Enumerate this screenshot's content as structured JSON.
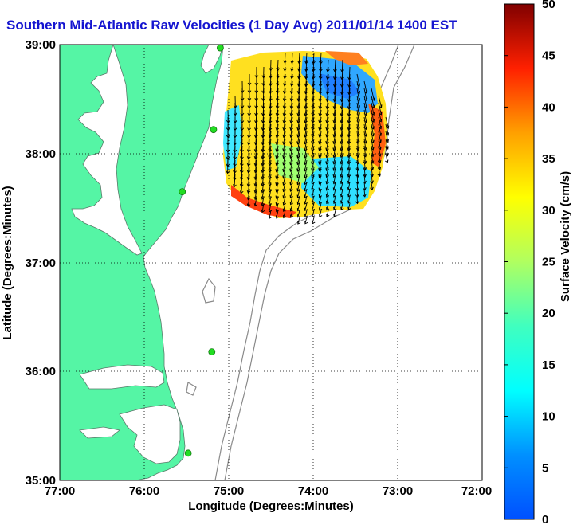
{
  "title": "Southern Mid-Atlantic Raw Velocities (1 Day Avg) 2011/01/14 1400 EST",
  "map": {
    "xlabel": "Longitude (Degrees:Minutes)",
    "ylabel": "Latitude (Degrees:Minutes)",
    "x_ticks": [
      "77:00",
      "76:00",
      "75:00",
      "74:00",
      "73:00",
      "72:00"
    ],
    "y_ticks": [
      "39:00",
      "38:00",
      "37:00",
      "36:00",
      "35:00"
    ],
    "lon_range": [
      -77,
      -72
    ],
    "lat_range": [
      35,
      39
    ],
    "land_color": "#55f5a5",
    "water_color": "#ffffff",
    "grid": true
  },
  "colorbar": {
    "label": "Surface Velocity (cm/s)",
    "ticks": [
      "0",
      "5",
      "10",
      "15",
      "20",
      "25",
      "30",
      "35",
      "40",
      "45",
      "50"
    ],
    "range": [
      0,
      50
    ],
    "colormap": "jet"
  },
  "stations": [
    {
      "lon": -75.1,
      "lat": 38.97
    },
    {
      "lon": -75.18,
      "lat": 38.22
    },
    {
      "lon": -75.55,
      "lat": 37.65
    },
    {
      "lon": -75.2,
      "lat": 36.18
    },
    {
      "lon": -75.48,
      "lat": 35.25
    }
  ],
  "icons": {
    "station": "hf-radar-station-icon",
    "vector": "current-arrow-icon"
  }
}
